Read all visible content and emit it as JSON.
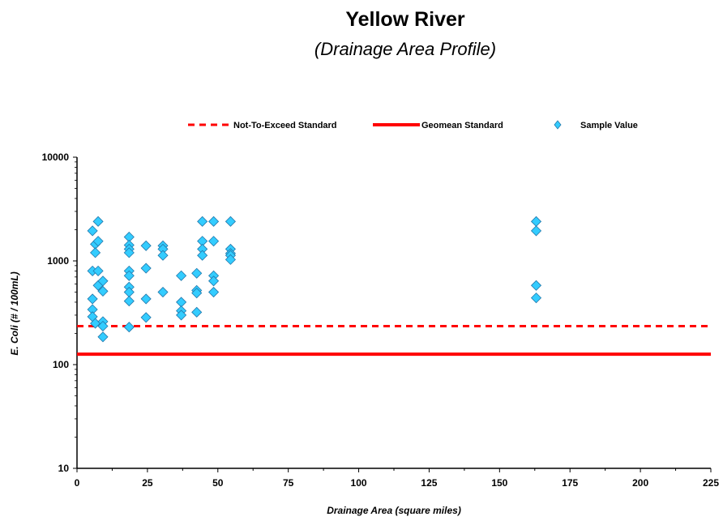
{
  "chart_data": {
    "type": "scatter",
    "title": "Yellow River",
    "subtitle": "(Drainage Area Profile)",
    "xlabel": "Drainage Area  (square miles)",
    "ylabel": "E. Coli (# / 100mL)",
    "xlim": [
      0,
      225
    ],
    "ylim": [
      10,
      10000
    ],
    "yscale": "log",
    "x_ticks": [
      0,
      25,
      50,
      75,
      100,
      125,
      150,
      175,
      200,
      225
    ],
    "y_ticks": [
      10,
      100,
      1000,
      10000
    ],
    "legend_position": "top",
    "legend": [
      {
        "label": "Not-To-Exceed Standard",
        "style": "dashed-line",
        "color": "#ff0000"
      },
      {
        "label": "Geomean Standard",
        "style": "solid-line",
        "color": "#ff0000"
      },
      {
        "label": "Sample Value",
        "style": "diamond-marker",
        "color": "#33ccff"
      }
    ],
    "reference_lines": [
      {
        "name": "Not-To-Exceed Standard",
        "y": 235,
        "color": "#ff0000",
        "dash": true
      },
      {
        "name": "Geomean Standard",
        "y": 126,
        "color": "#ff0000",
        "dash": false
      }
    ],
    "series": [
      {
        "name": "Sample Value",
        "color": "#33ccff",
        "points": [
          [
            5.5,
            1950
          ],
          [
            5.5,
            800
          ],
          [
            5.5,
            430
          ],
          [
            5.5,
            340
          ],
          [
            5.5,
            290
          ],
          [
            6.5,
            1450
          ],
          [
            6.5,
            1200
          ],
          [
            6.5,
            250
          ],
          [
            7.5,
            2400
          ],
          [
            7.5,
            1550
          ],
          [
            7.5,
            800
          ],
          [
            7.5,
            580
          ],
          [
            9.2,
            640
          ],
          [
            9.2,
            510
          ],
          [
            9.2,
            260
          ],
          [
            9.2,
            235
          ],
          [
            9.2,
            185
          ],
          [
            18.5,
            1700
          ],
          [
            18.5,
            1420
          ],
          [
            18.5,
            1300
          ],
          [
            18.5,
            1200
          ],
          [
            18.5,
            800
          ],
          [
            18.5,
            720
          ],
          [
            18.5,
            560
          ],
          [
            18.5,
            500
          ],
          [
            18.5,
            410
          ],
          [
            18.5,
            230
          ],
          [
            24.5,
            1400
          ],
          [
            24.5,
            850
          ],
          [
            24.5,
            430
          ],
          [
            24.5,
            285
          ],
          [
            30.5,
            1400
          ],
          [
            30.5,
            1300
          ],
          [
            30.5,
            1130
          ],
          [
            30.5,
            500
          ],
          [
            37,
            720
          ],
          [
            37,
            400
          ],
          [
            37,
            330
          ],
          [
            37,
            300
          ],
          [
            42.5,
            760
          ],
          [
            42.5,
            520
          ],
          [
            42.5,
            490
          ],
          [
            42.5,
            320
          ],
          [
            44.5,
            2400
          ],
          [
            44.5,
            1550
          ],
          [
            44.5,
            1300
          ],
          [
            44.5,
            1130
          ],
          [
            48.5,
            2400
          ],
          [
            48.5,
            1550
          ],
          [
            48.5,
            720
          ],
          [
            48.5,
            640
          ],
          [
            48.5,
            500
          ],
          [
            54.5,
            2400
          ],
          [
            54.5,
            1300
          ],
          [
            54.5,
            1180
          ],
          [
            54.5,
            1130
          ],
          [
            54.5,
            1030
          ],
          [
            163,
            2400
          ],
          [
            163,
            1950
          ],
          [
            163,
            580
          ],
          [
            163,
            440
          ]
        ]
      }
    ]
  }
}
